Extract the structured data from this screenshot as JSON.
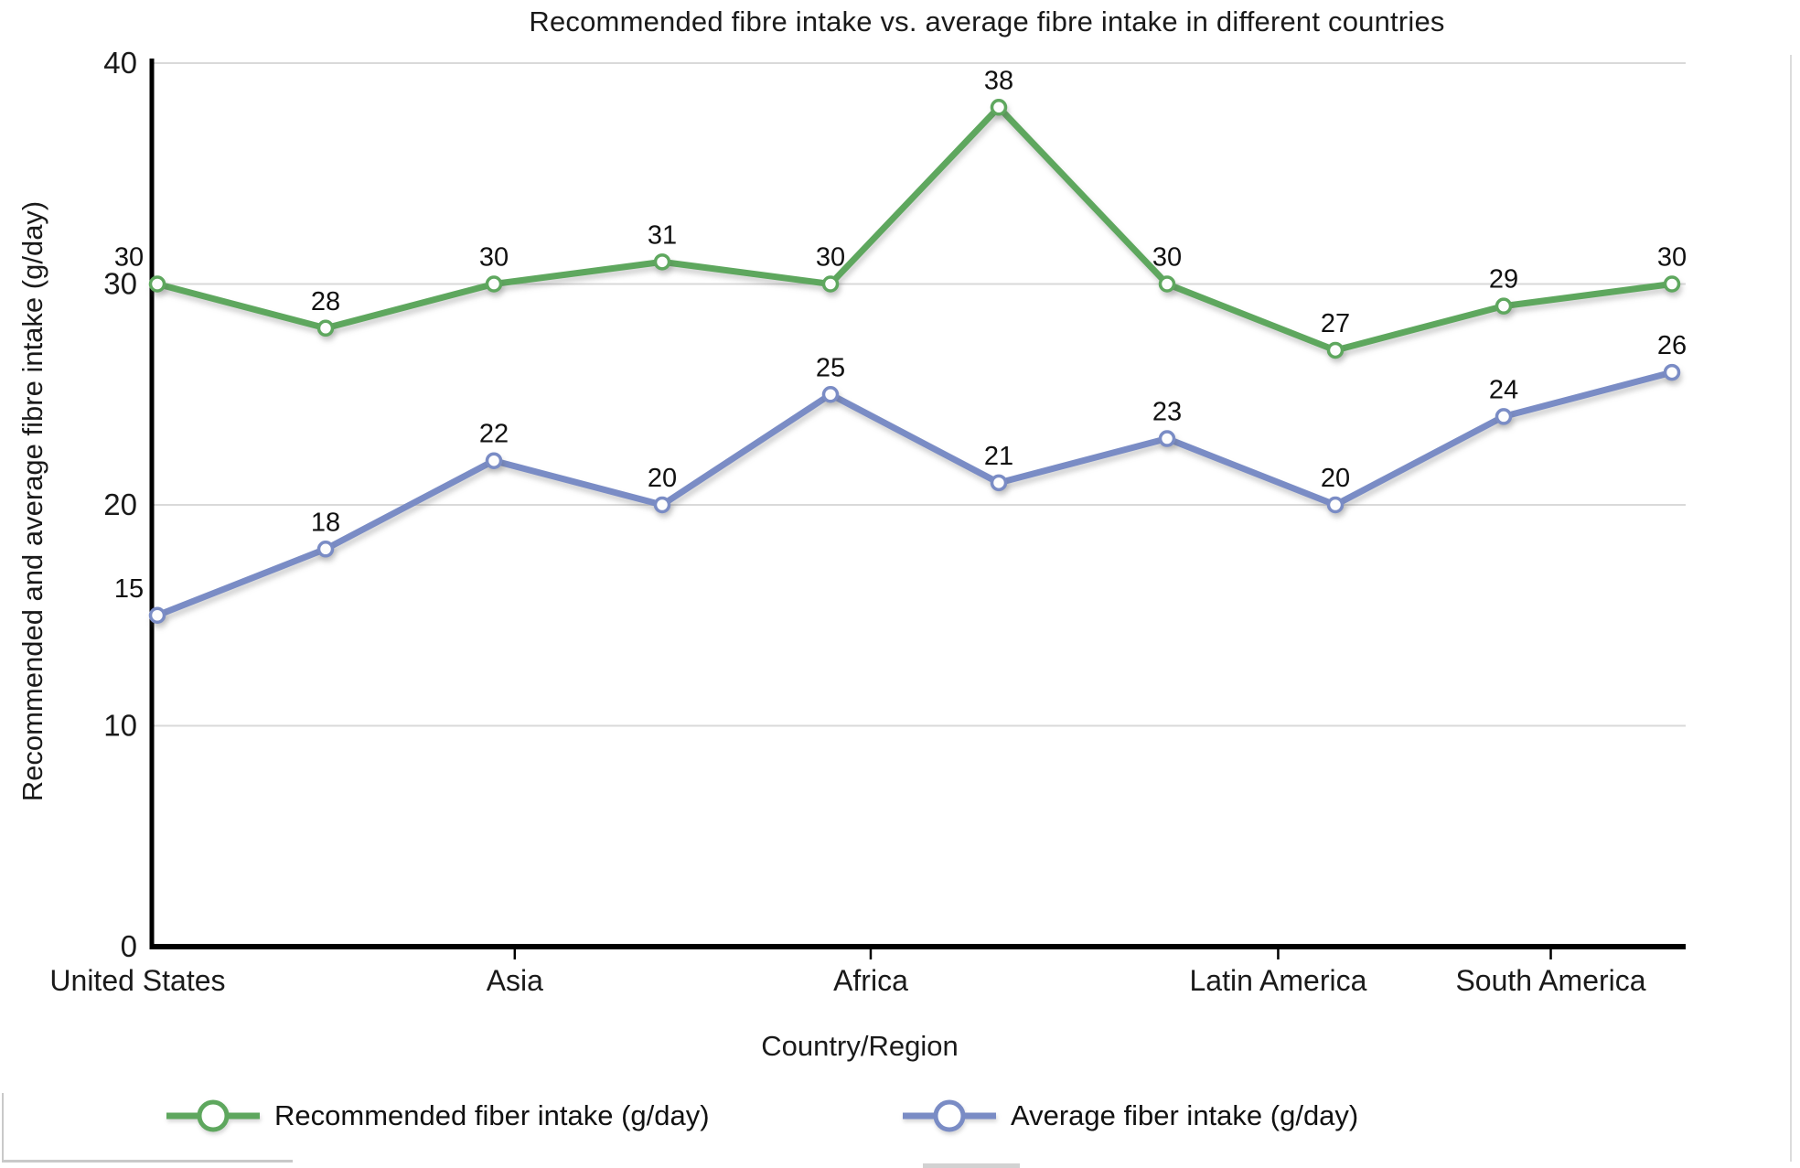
{
  "chart_data": {
    "type": "line",
    "title": "Recommended fibre intake vs. average fibre intake in different countries",
    "xlabel": "Country/Region",
    "ylabel": "Recommended and average fibre intake (g/day)",
    "n_points": 10,
    "x_tick_labels": [
      "United States",
      "Asia",
      "Africa",
      "Latin America",
      "South America"
    ],
    "yticks": [
      0,
      10,
      20,
      30,
      40
    ],
    "ylim": [
      0,
      40
    ],
    "grid": "horizontal-light-gray",
    "legend_position": "bottom",
    "series": [
      {
        "name": "Recommended fiber intake (g/day)",
        "color": "#5ea75e",
        "values": [
          30,
          28,
          30,
          31,
          30,
          38,
          30,
          27,
          29,
          30
        ]
      },
      {
        "name": "Average fiber intake (g/day)",
        "color": "#7a8cc5",
        "values": [
          15,
          18,
          22,
          20,
          25,
          21,
          23,
          20,
          24,
          26
        ]
      }
    ],
    "colors": {
      "gridline": "#d9d9d9",
      "axis": "#000000",
      "text": "#1a1a1a",
      "marker_fill": "#fdfdfd"
    }
  }
}
